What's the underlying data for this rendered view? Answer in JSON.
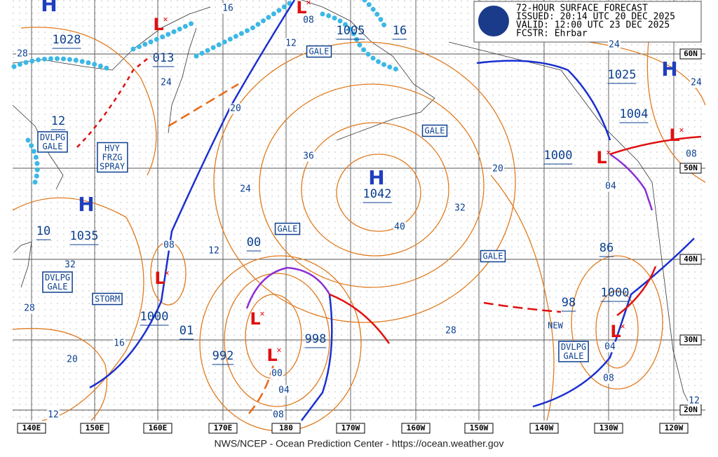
{
  "header": {
    "title": "72-HOUR SURFACE FORECAST",
    "issued": "ISSUED: 20:14 UTC 20 DEC 2025",
    "valid": "VALID:  12:00 UTC 23 DEC 2025",
    "forecaster": "FCSTR:  Ehrbar"
  },
  "footer": "NWS/NCEP - Ocean Prediction Center - https://ocean.weather.gov",
  "longitudes": [
    "140E",
    "150E",
    "160E",
    "170E",
    "180",
    "170W",
    "160W",
    "150W",
    "140W",
    "130W",
    "120W"
  ],
  "latitudes": [
    "60N",
    "50N",
    "40N",
    "30N",
    "20N"
  ],
  "highs": [
    "H",
    "H",
    "H",
    "H"
  ],
  "lows": [
    "L",
    "L",
    "L",
    "L",
    "L",
    "L",
    "L",
    "L"
  ],
  "center_pressures": [
    "1028",
    "013",
    "12",
    "1035",
    "10",
    "1000",
    "01",
    "992",
    "998",
    "00",
    "1005",
    "16",
    "1042",
    "1025",
    "1004",
    "1000",
    "86",
    "1000",
    "98"
  ],
  "isobar_labels": [
    "16",
    "08",
    "12",
    "28",
    "24",
    "20",
    "36",
    "24",
    "40",
    "32",
    "20",
    "24",
    "24",
    "08",
    "04",
    "12",
    "08",
    "32",
    "28",
    "16",
    "20",
    "12",
    "28",
    "00",
    "04",
    "08",
    "08",
    "04",
    "12"
  ],
  "warnings": [
    [
      "GALE"
    ],
    [
      "GALE"
    ],
    [
      "GALE"
    ],
    [
      "GALE"
    ],
    [
      "STORM"
    ],
    [
      "DVLPG",
      "GALE"
    ],
    [
      "HVY",
      "FRZG",
      "SPRAY"
    ],
    [
      "DVLPG",
      "GALE"
    ],
    [
      "DVLPG",
      "GALE"
    ]
  ],
  "notes": [
    "NEW"
  ]
}
